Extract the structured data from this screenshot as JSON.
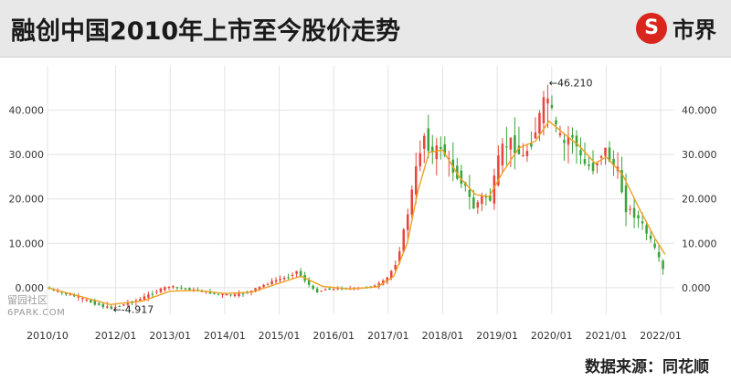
{
  "header": {
    "title": "融创中国2010年上市至今股价走势",
    "logo_mark": "S",
    "logo_text": "市界"
  },
  "source": "数据来源：同花顺",
  "watermark": {
    "line1": "留园社区",
    "line2": "6PARK.COM"
  },
  "colors": {
    "up": "#e8453c",
    "down": "#3aa43a",
    "ma_line": "#f0a020",
    "grid": "#e3e3e3",
    "axis_text": "#333333"
  },
  "chart_data": {
    "type": "line",
    "subtype": "candlestick-with-moving-average",
    "x_tick_labels": [
      "2010/10",
      "2012/01",
      "2013/01",
      "2014/01",
      "2015/01",
      "2016/01",
      "2017/01",
      "2018/01",
      "2019/01",
      "2020/01",
      "2021/01",
      "2022/01"
    ],
    "x_tick_positions": [
      2010.75,
      2012.0,
      2013.0,
      2014.0,
      2015.0,
      2016.0,
      2017.0,
      2018.0,
      2019.0,
      2020.0,
      2021.0,
      2022.0
    ],
    "xlim": [
      2010.75,
      2022.25
    ],
    "y_tick_labels": [
      "0.000",
      "10.000",
      "20.000",
      "30.000",
      "40.000"
    ],
    "y_ticks": [
      0,
      10,
      20,
      30,
      40
    ],
    "ylim": [
      -6,
      50
    ],
    "grid": true,
    "y_axis": "both-sides",
    "annotations": [
      {
        "text": "←46.210",
        "x": 2019.95,
        "y": 46.21
      },
      {
        "text": "←-4.917",
        "x": 2011.95,
        "y": -4.917
      }
    ],
    "price_path": [
      [
        2010.75,
        0.0
      ],
      [
        2011.0,
        -1.0
      ],
      [
        2011.3,
        -2.0
      ],
      [
        2011.6,
        -3.3
      ],
      [
        2011.9,
        -4.6
      ],
      [
        2012.2,
        -3.8
      ],
      [
        2012.5,
        -2.5
      ],
      [
        2012.75,
        -1.0
      ],
      [
        2013.0,
        0.3
      ],
      [
        2013.3,
        -0.2
      ],
      [
        2013.6,
        -0.8
      ],
      [
        2013.9,
        -1.5
      ],
      [
        2014.2,
        -1.7
      ],
      [
        2014.5,
        -0.9
      ],
      [
        2014.75,
        0.6
      ],
      [
        2015.0,
        1.8
      ],
      [
        2015.2,
        2.4
      ],
      [
        2015.35,
        3.8
      ],
      [
        2015.5,
        1.8
      ],
      [
        2015.7,
        -1.0
      ],
      [
        2015.9,
        -0.3
      ],
      [
        2016.2,
        -0.2
      ],
      [
        2016.5,
        -0.1
      ],
      [
        2016.8,
        0.4
      ],
      [
        2017.0,
        1.8
      ],
      [
        2017.2,
        6.0
      ],
      [
        2017.4,
        17.0
      ],
      [
        2017.6,
        30.0
      ],
      [
        2017.7,
        34.5
      ],
      [
        2017.85,
        30.0
      ],
      [
        2018.0,
        32.0
      ],
      [
        2018.2,
        27.0
      ],
      [
        2018.4,
        24.0
      ],
      [
        2018.6,
        18.0
      ],
      [
        2018.8,
        21.0
      ],
      [
        2018.9,
        19.5
      ],
      [
        2019.1,
        31.0
      ],
      [
        2019.3,
        33.0
      ],
      [
        2019.5,
        29.0
      ],
      [
        2019.7,
        34.0
      ],
      [
        2019.85,
        40.0
      ],
      [
        2019.95,
        43.5
      ],
      [
        2020.1,
        36.0
      ],
      [
        2020.25,
        32.0
      ],
      [
        2020.4,
        35.0
      ],
      [
        2020.6,
        28.0
      ],
      [
        2020.8,
        27.0
      ],
      [
        2021.0,
        31.5
      ],
      [
        2021.1,
        29.0
      ],
      [
        2021.25,
        26.0
      ],
      [
        2021.4,
        18.0
      ],
      [
        2021.6,
        16.0
      ],
      [
        2021.75,
        13.0
      ],
      [
        2021.95,
        8.0
      ],
      [
        2022.08,
        4.0
      ]
    ],
    "moving_average_path": [
      [
        2010.75,
        0.0
      ],
      [
        2011.3,
        -1.8
      ],
      [
        2011.9,
        -3.8
      ],
      [
        2012.5,
        -3.0
      ],
      [
        2013.0,
        -0.8
      ],
      [
        2013.5,
        -0.6
      ],
      [
        2014.0,
        -1.3
      ],
      [
        2014.5,
        -1.0
      ],
      [
        2015.0,
        1.0
      ],
      [
        2015.4,
        2.6
      ],
      [
        2015.8,
        0.3
      ],
      [
        2016.3,
        -0.3
      ],
      [
        2016.8,
        0.2
      ],
      [
        2017.1,
        2.5
      ],
      [
        2017.35,
        10.0
      ],
      [
        2017.55,
        22.0
      ],
      [
        2017.75,
        30.5
      ],
      [
        2018.0,
        31.0
      ],
      [
        2018.3,
        25.0
      ],
      [
        2018.6,
        21.0
      ],
      [
        2018.85,
        20.5
      ],
      [
        2019.1,
        26.0
      ],
      [
        2019.4,
        31.5
      ],
      [
        2019.7,
        33.0
      ],
      [
        2019.95,
        37.5
      ],
      [
        2020.2,
        35.0
      ],
      [
        2020.5,
        32.0
      ],
      [
        2020.8,
        28.0
      ],
      [
        2021.0,
        29.5
      ],
      [
        2021.3,
        25.5
      ],
      [
        2021.6,
        18.0
      ],
      [
        2021.9,
        11.0
      ],
      [
        2022.08,
        7.5
      ]
    ]
  }
}
